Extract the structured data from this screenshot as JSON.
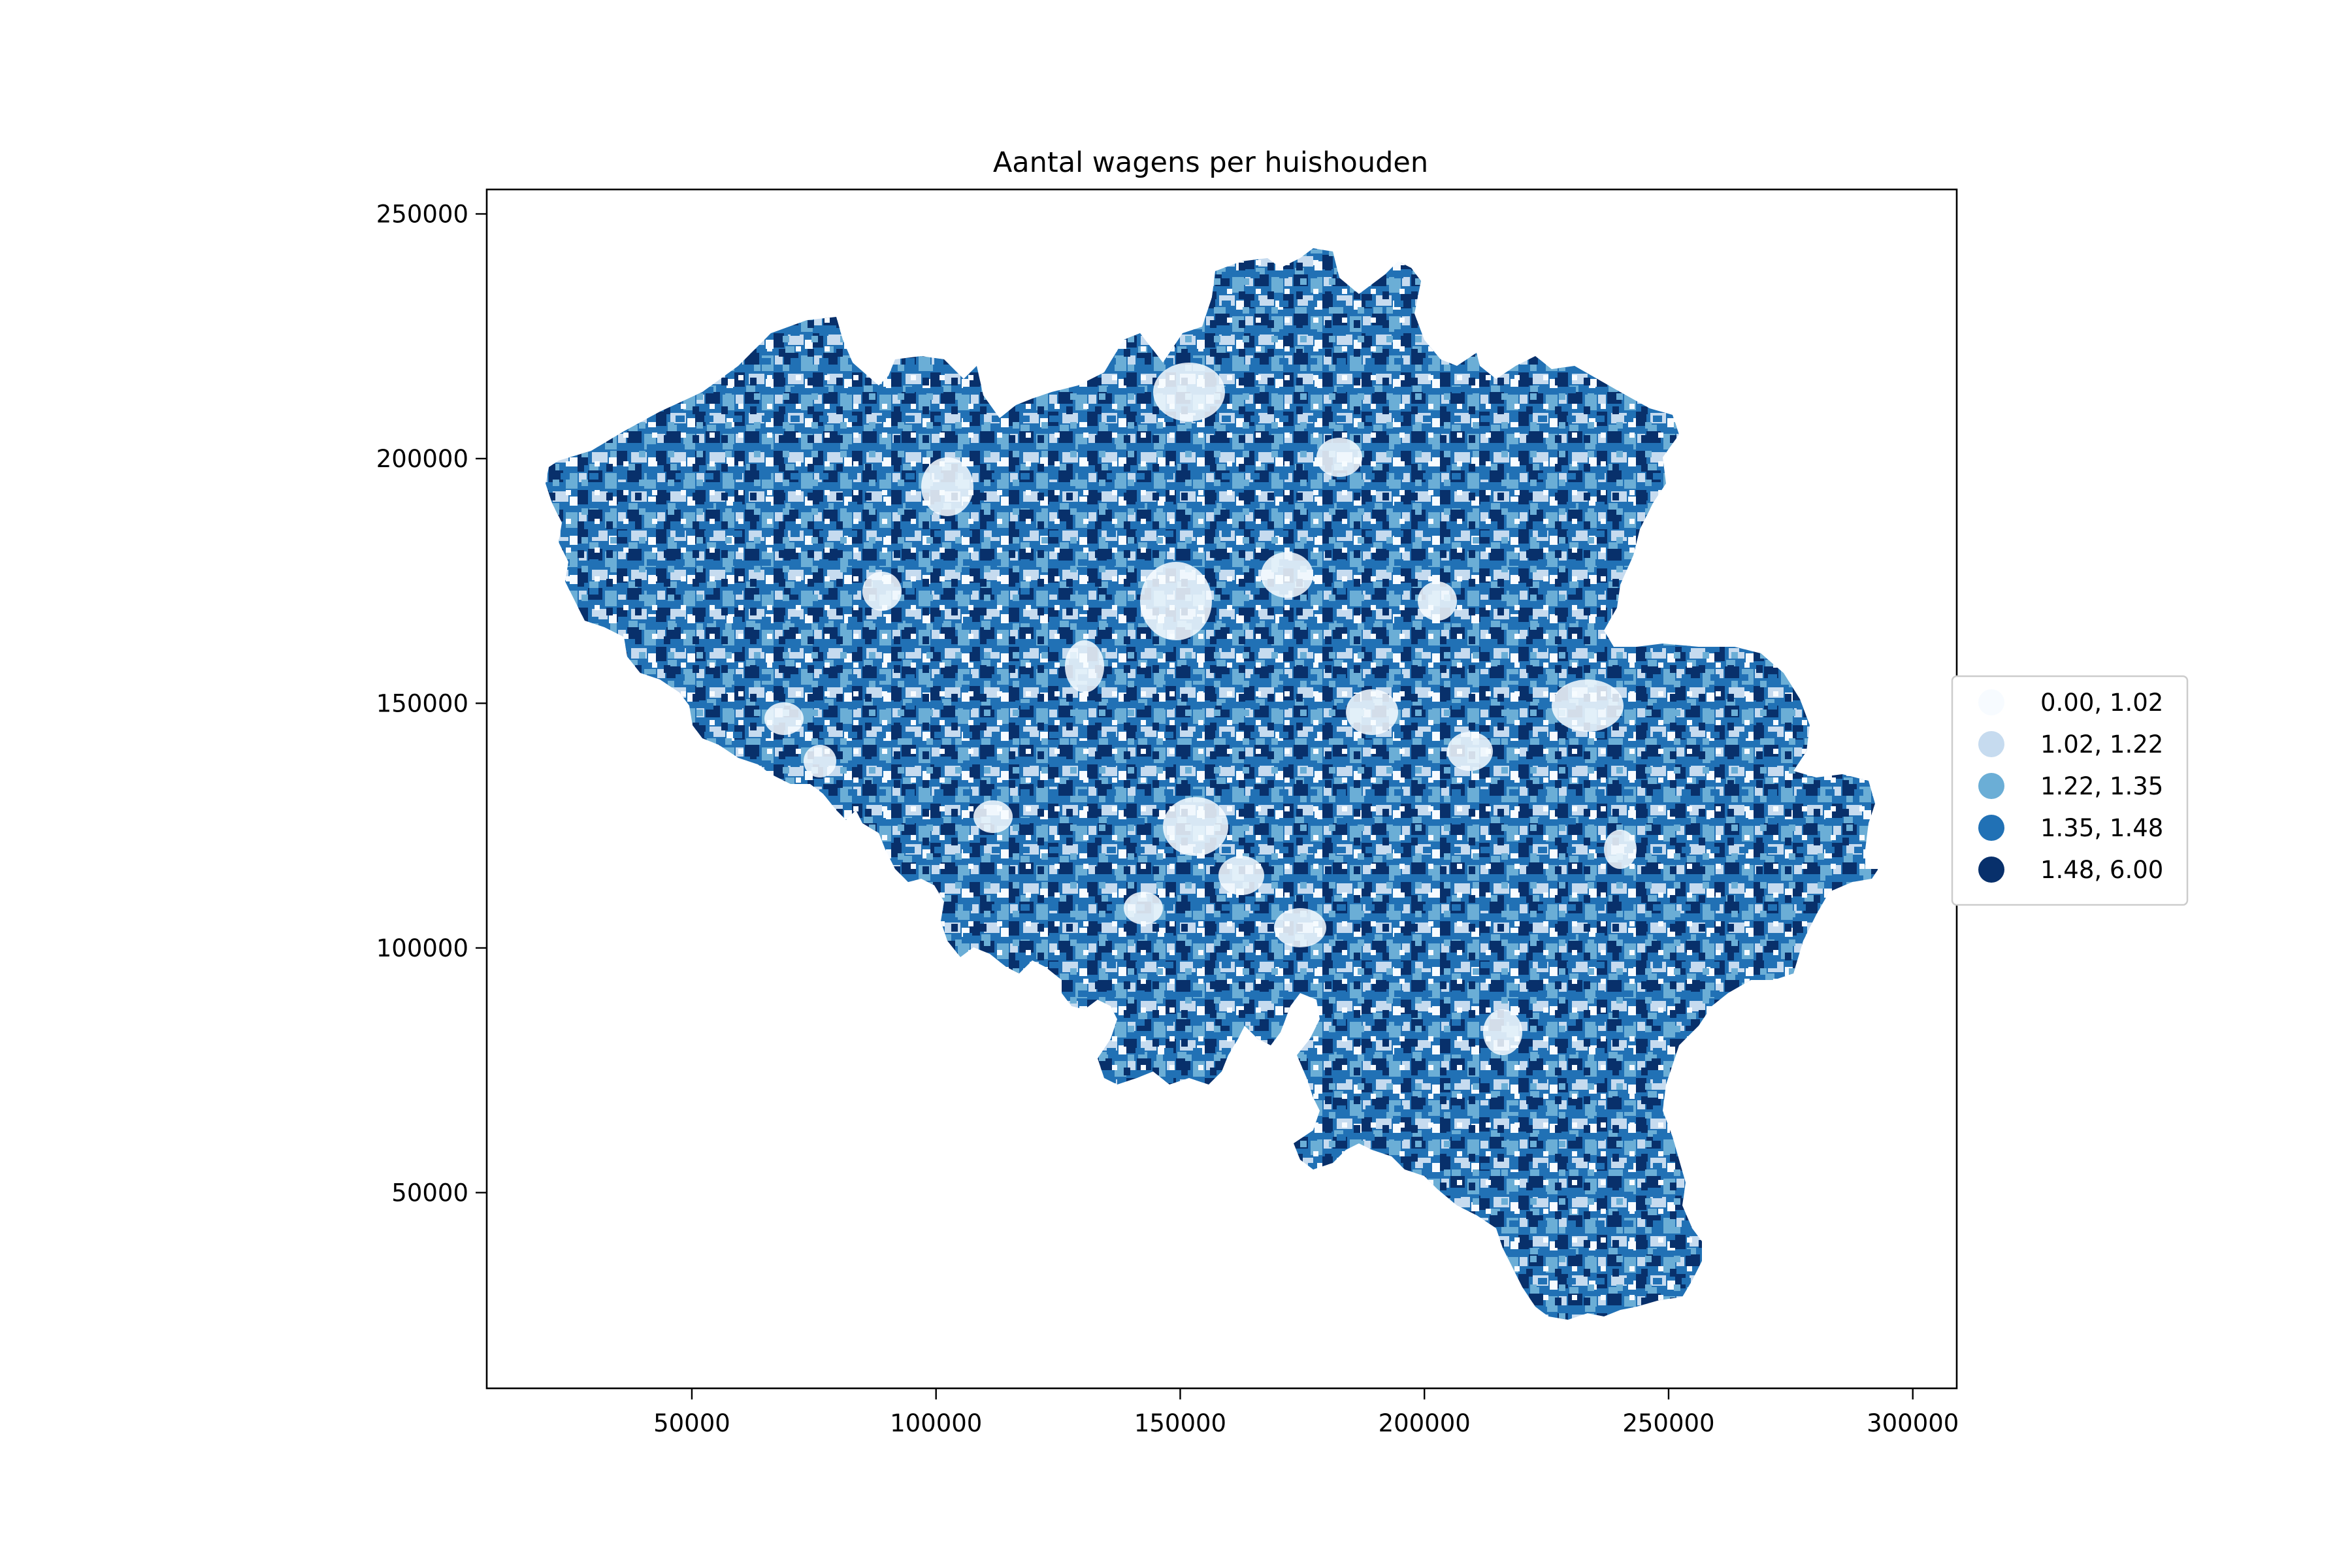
{
  "title": "Aantal wagens per huishouden",
  "map": {
    "x_ticks": [
      50000,
      100000,
      150000,
      200000,
      250000,
      300000
    ],
    "y_ticks": [
      50000,
      100000,
      150000,
      200000,
      250000
    ],
    "x_tick_labels": [
      "50000",
      "100000",
      "150000",
      "200000",
      "250000",
      "300000"
    ],
    "y_tick_labels": [
      "50000",
      "100000",
      "150000",
      "200000",
      "250000"
    ],
    "xlim": [
      8000,
      309000
    ],
    "ylim": [
      10000,
      255000
    ],
    "region_shape": "Belgium",
    "fill_color_scale": "Blues"
  },
  "legend": {
    "placement": "right",
    "entries": [
      {
        "label": "0.00, 1.02",
        "color": "#f7fbff"
      },
      {
        "label": "1.02, 1.22",
        "color": "#c6dbef"
      },
      {
        "label": "1.22, 1.35",
        "color": "#6baed6"
      },
      {
        "label": "1.35, 1.48",
        "color": "#2171b5"
      },
      {
        "label": "1.48, 6.00",
        "color": "#08306b"
      }
    ]
  }
}
